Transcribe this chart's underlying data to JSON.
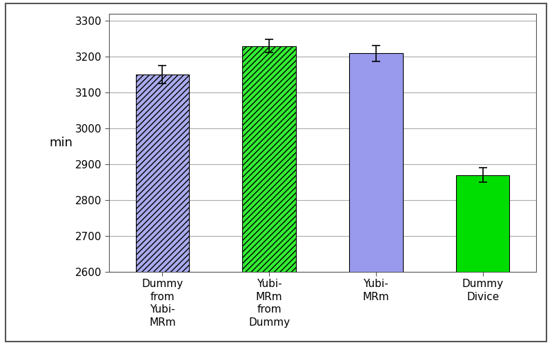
{
  "categories": [
    "Dummy\nfrom\nYubi-\nMRm",
    "Yubi-\nMRm\nfrom\nDummy",
    "Yubi-\nMRm",
    "Dummy\nDivice"
  ],
  "values": [
    3150,
    3230,
    3210,
    2870
  ],
  "errors": [
    25,
    18,
    22,
    20
  ],
  "bar_colors": [
    "#aaaaee",
    "#33ee33",
    "#9999ee",
    "#00dd00"
  ],
  "hatch_patterns": [
    "////",
    "////",
    "",
    ""
  ],
  "ylim": [
    2600,
    3320
  ],
  "yticks": [
    2600,
    2700,
    2800,
    2900,
    3000,
    3100,
    3200,
    3300
  ],
  "ylabel": "min",
  "background_color": "#ffffff",
  "plot_bg_color": "#ffffff",
  "grid_color": "#aaaaaa",
  "bar_edge_color": "#000000",
  "figsize": [
    8.0,
    5.0
  ],
  "dpi": 100,
  "bar_width": 0.5,
  "ylabel_fontsize": 13,
  "tick_fontsize": 11,
  "xlabel_fontsize": 11
}
